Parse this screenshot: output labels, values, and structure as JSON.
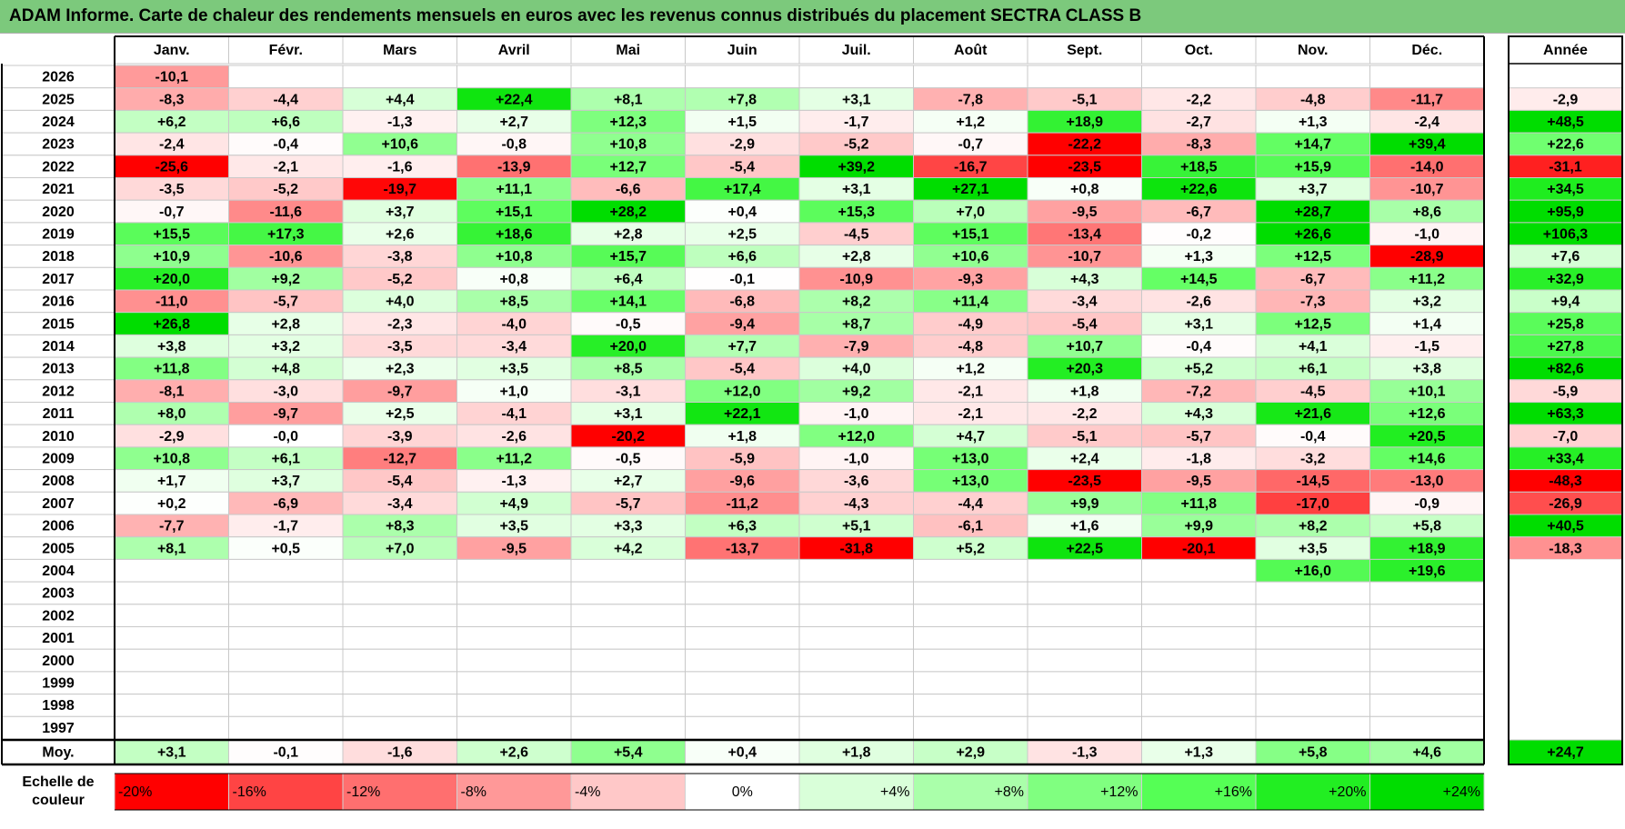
{
  "title": "ADAM Informe. Carte de chaleur des rendements mensuels en euros avec les revenus connus distribués du placement SECTRA CLASS B",
  "chart_data": {
    "type": "heatmap",
    "title": "ADAM Informe. Carte de chaleur des rendements mensuels en euros avec les revenus connus distribués du placement SECTRA CLASS B",
    "columns": [
      "Janv.",
      "Févr.",
      "Mars",
      "Avril",
      "Mai",
      "Juin",
      "Juil.",
      "Août",
      "Sept.",
      "Oct.",
      "Nov.",
      "Déc."
    ],
    "annual_header": "Année",
    "rows": [
      {
        "year": "2026",
        "values": [
          "-10,1",
          "",
          "",
          "",
          "",
          "",
          "",
          "",
          "",
          "",
          "",
          ""
        ],
        "annual": ""
      },
      {
        "year": "2025",
        "values": [
          "-8,3",
          "-4,4",
          "+4,4",
          "+22,4",
          "+8,1",
          "+7,8",
          "+3,1",
          "-7,8",
          "-5,1",
          "-2,2",
          "-4,8",
          "-11,7"
        ],
        "annual": "-2,9"
      },
      {
        "year": "2024",
        "values": [
          "+6,2",
          "+6,6",
          "-1,3",
          "+2,7",
          "+12,3",
          "+1,5",
          "-1,7",
          "+1,2",
          "+18,9",
          "-2,7",
          "+1,3",
          "-2,4"
        ],
        "annual": "+48,5"
      },
      {
        "year": "2023",
        "values": [
          "-2,4",
          "-0,4",
          "+10,6",
          "-0,8",
          "+10,8",
          "-2,9",
          "-5,2",
          "-0,7",
          "-22,2",
          "-8,3",
          "+14,7",
          "+39,4"
        ],
        "annual": "+22,6"
      },
      {
        "year": "2022",
        "values": [
          "-25,6",
          "-2,1",
          "-1,6",
          "-13,9",
          "+12,7",
          "-5,4",
          "+39,2",
          "-16,7",
          "-23,5",
          "+18,5",
          "+15,9",
          "-14,0"
        ],
        "annual": "-31,1"
      },
      {
        "year": "2021",
        "values": [
          "-3,5",
          "-5,2",
          "-19,7",
          "+11,1",
          "-6,6",
          "+17,4",
          "+3,1",
          "+27,1",
          "+0,8",
          "+22,6",
          "+3,7",
          "-10,7"
        ],
        "annual": "+34,5"
      },
      {
        "year": "2020",
        "values": [
          "-0,7",
          "-11,6",
          "+3,7",
          "+15,1",
          "+28,2",
          "+0,4",
          "+15,3",
          "+7,0",
          "-9,5",
          "-6,7",
          "+28,7",
          "+8,6"
        ],
        "annual": "+95,9"
      },
      {
        "year": "2019",
        "values": [
          "+15,5",
          "+17,3",
          "+2,6",
          "+18,6",
          "+2,8",
          "+2,5",
          "-4,5",
          "+15,1",
          "-13,4",
          "-0,2",
          "+26,6",
          "-1,0"
        ],
        "annual": "+106,3"
      },
      {
        "year": "2018",
        "values": [
          "+10,9",
          "-10,6",
          "-3,8",
          "+10,8",
          "+15,7",
          "+6,6",
          "+2,8",
          "+10,6",
          "-10,7",
          "+1,3",
          "+12,5",
          "-28,9"
        ],
        "annual": "+7,6"
      },
      {
        "year": "2017",
        "values": [
          "+20,0",
          "+9,2",
          "-5,2",
          "+0,8",
          "+6,4",
          "-0,1",
          "-10,9",
          "-9,3",
          "+4,3",
          "+14,5",
          "-6,7",
          "+11,2"
        ],
        "annual": "+32,9"
      },
      {
        "year": "2016",
        "values": [
          "-11,0",
          "-5,7",
          "+4,0",
          "+8,5",
          "+14,1",
          "-6,8",
          "+8,2",
          "+11,4",
          "-3,4",
          "-2,6",
          "-7,3",
          "+3,2"
        ],
        "annual": "+9,4"
      },
      {
        "year": "2015",
        "values": [
          "+26,8",
          "+2,8",
          "-2,3",
          "-4,0",
          "-0,5",
          "-9,4",
          "+8,7",
          "-4,9",
          "-5,4",
          "+3,1",
          "+12,5",
          "+1,4"
        ],
        "annual": "+25,8"
      },
      {
        "year": "2014",
        "values": [
          "+3,8",
          "+3,2",
          "-3,5",
          "-3,4",
          "+20,0",
          "+7,7",
          "-7,9",
          "-4,8",
          "+10,7",
          "-0,4",
          "+4,1",
          "-1,5"
        ],
        "annual": "+27,8"
      },
      {
        "year": "2013",
        "values": [
          "+11,8",
          "+4,8",
          "+2,3",
          "+3,5",
          "+8,5",
          "-5,4",
          "+4,0",
          "+1,2",
          "+20,3",
          "+5,2",
          "+6,1",
          "+3,8"
        ],
        "annual": "+82,6"
      },
      {
        "year": "2012",
        "values": [
          "-8,1",
          "-3,0",
          "-9,7",
          "+1,0",
          "-3,1",
          "+12,0",
          "+9,2",
          "-2,1",
          "+1,8",
          "-7,2",
          "-4,5",
          "+10,1"
        ],
        "annual": "-5,9"
      },
      {
        "year": "2011",
        "values": [
          "+8,0",
          "-9,7",
          "+2,5",
          "-4,1",
          "+3,1",
          "+22,1",
          "-1,0",
          "-2,1",
          "-2,2",
          "+4,3",
          "+21,6",
          "+12,6"
        ],
        "annual": "+63,3"
      },
      {
        "year": "2010",
        "values": [
          "-2,9",
          "-0,0",
          "-3,9",
          "-2,6",
          "-20,2",
          "+1,8",
          "+12,0",
          "+4,7",
          "-5,1",
          "-5,7",
          "-0,4",
          "+20,5"
        ],
        "annual": "-7,0"
      },
      {
        "year": "2009",
        "values": [
          "+10,8",
          "+6,1",
          "-12,7",
          "+11,2",
          "-0,5",
          "-5,9",
          "-1,0",
          "+13,0",
          "+2,4",
          "-1,8",
          "-3,2",
          "+14,6"
        ],
        "annual": "+33,4"
      },
      {
        "year": "2008",
        "values": [
          "+1,7",
          "+3,7",
          "-5,4",
          "-1,3",
          "+2,7",
          "-9,6",
          "-3,6",
          "+13,0",
          "-23,5",
          "-9,5",
          "-14,5",
          "-13,0"
        ],
        "annual": "-48,3"
      },
      {
        "year": "2007",
        "values": [
          "+0,2",
          "-6,9",
          "-3,4",
          "+4,9",
          "-5,7",
          "-11,2",
          "-4,3",
          "-4,4",
          "+9,9",
          "+11,8",
          "-17,0",
          "-0,9"
        ],
        "annual": "-26,9"
      },
      {
        "year": "2006",
        "values": [
          "-7,7",
          "-1,7",
          "+8,3",
          "+3,5",
          "+3,3",
          "+6,3",
          "+5,1",
          "-6,1",
          "+1,6",
          "+9,9",
          "+8,2",
          "+5,8"
        ],
        "annual": "+40,5"
      },
      {
        "year": "2005",
        "values": [
          "+8,1",
          "+0,5",
          "+7,0",
          "-9,5",
          "+4,2",
          "-13,7",
          "-31,8",
          "+5,2",
          "+22,5",
          "-20,1",
          "+3,5",
          "+18,9"
        ],
        "annual": "-18,3"
      },
      {
        "year": "2004",
        "values": [
          "",
          "",
          "",
          "",
          "",
          "",
          "",
          "",
          "",
          "",
          "+16,0",
          "+19,6"
        ],
        "annual": ""
      },
      {
        "year": "2003",
        "values": [
          "",
          "",
          "",
          "",
          "",
          "",
          "",
          "",
          "",
          "",
          "",
          ""
        ],
        "annual": ""
      },
      {
        "year": "2002",
        "values": [
          "",
          "",
          "",
          "",
          "",
          "",
          "",
          "",
          "",
          "",
          "",
          ""
        ],
        "annual": ""
      },
      {
        "year": "2001",
        "values": [
          "",
          "",
          "",
          "",
          "",
          "",
          "",
          "",
          "",
          "",
          "",
          ""
        ],
        "annual": ""
      },
      {
        "year": "2000",
        "values": [
          "",
          "",
          "",
          "",
          "",
          "",
          "",
          "",
          "",
          "",
          "",
          ""
        ],
        "annual": ""
      },
      {
        "year": "1999",
        "values": [
          "",
          "",
          "",
          "",
          "",
          "",
          "",
          "",
          "",
          "",
          "",
          ""
        ],
        "annual": ""
      },
      {
        "year": "1998",
        "values": [
          "",
          "",
          "",
          "",
          "",
          "",
          "",
          "",
          "",
          "",
          "",
          ""
        ],
        "annual": ""
      },
      {
        "year": "1997",
        "values": [
          "",
          "",
          "",
          "",
          "",
          "",
          "",
          "",
          "",
          "",
          "",
          ""
        ],
        "annual": ""
      }
    ],
    "average": {
      "label": "Moy.",
      "values": [
        "+3,1",
        "-0,1",
        "-1,6",
        "+2,6",
        "+5,4",
        "+0,4",
        "+1,8",
        "+2,9",
        "-1,3",
        "+1,3",
        "+5,8",
        "+4,6"
      ],
      "annual": "+24,7"
    },
    "color_scale": {
      "label_line1": "Echelle de",
      "label_line2": "couleur",
      "stops": [
        "-20%",
        "-16%",
        "-12%",
        "-8%",
        "-4%",
        "0%",
        "+4%",
        "+8%",
        "+12%",
        "+16%",
        "+20%",
        "+24%"
      ],
      "colors": [
        "#ff0000",
        "#ff4444",
        "#ff6f6f",
        "#ff9898",
        "#ffc8c8",
        "#ffffff",
        "#d9ffd9",
        "#aaffaa",
        "#80ff80",
        "#55ff55",
        "#22ee22",
        "#00dd00"
      ]
    }
  }
}
